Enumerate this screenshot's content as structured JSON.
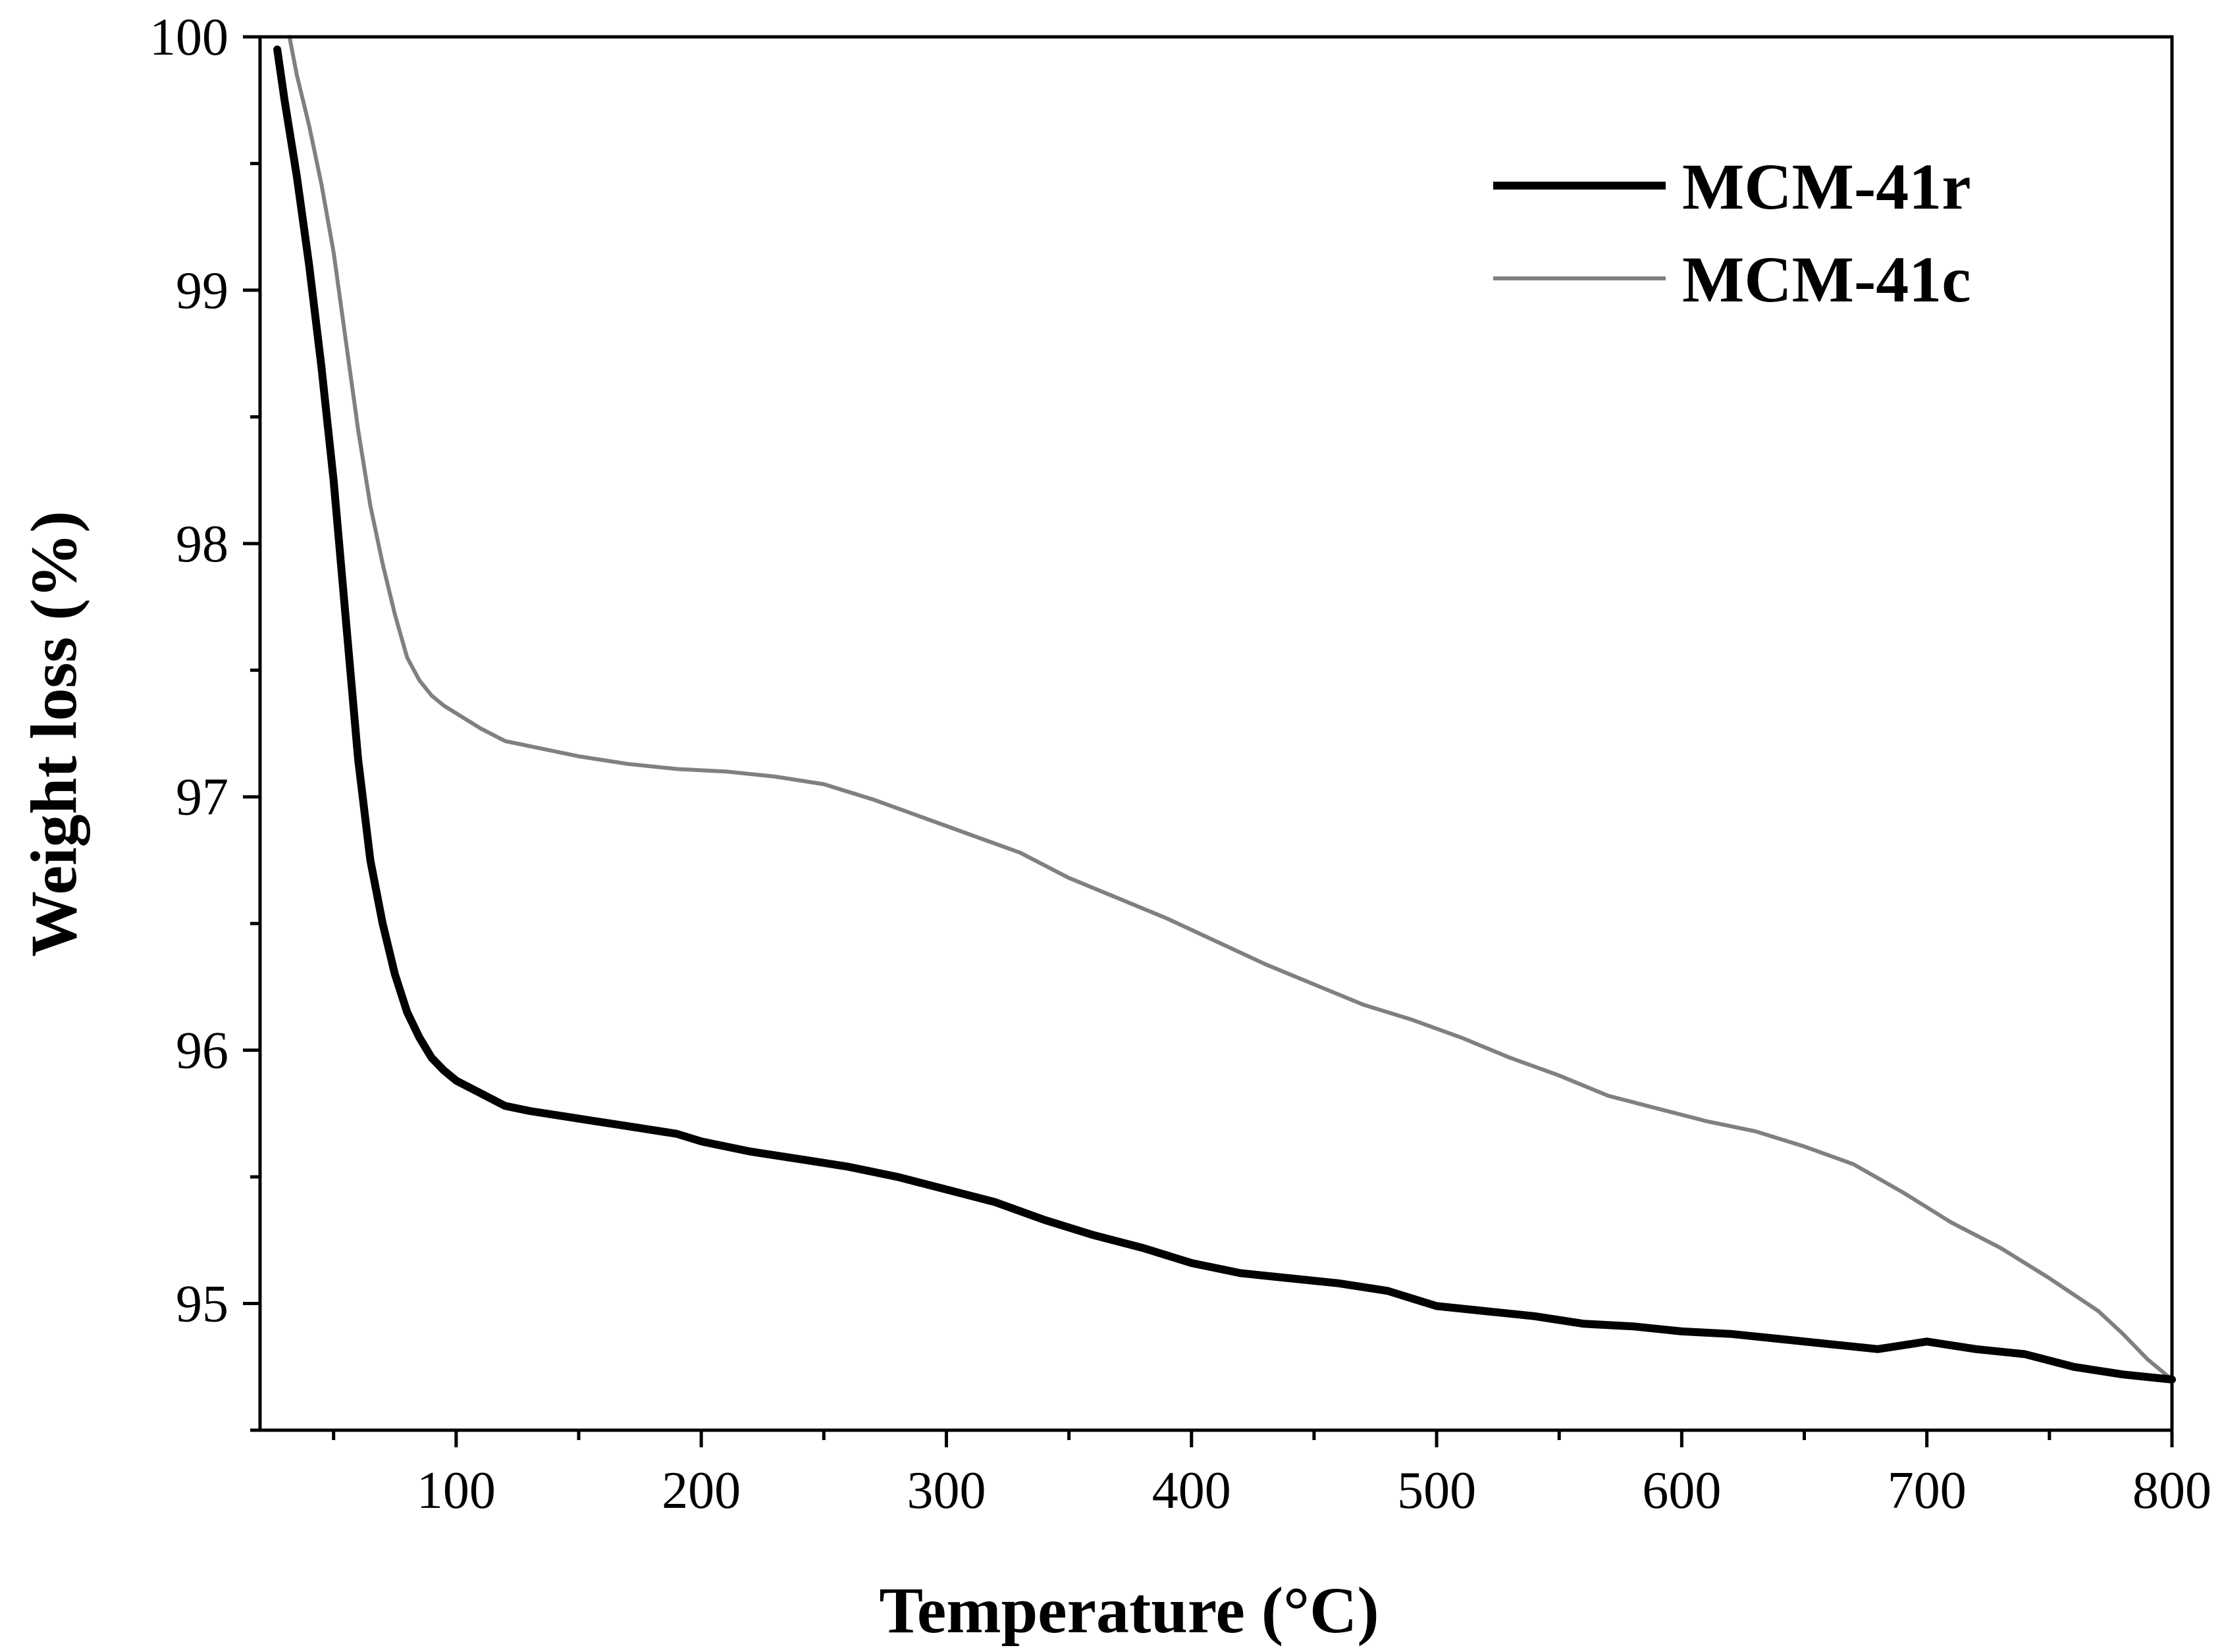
{
  "chart_data": {
    "type": "line",
    "title": "",
    "xlabel": "Temperature (°C)",
    "ylabel": "Weight loss (%)",
    "xlim": [
      20,
      800
    ],
    "ylim": [
      94.5,
      100
    ],
    "x_ticks": [
      100,
      200,
      300,
      400,
      500,
      600,
      700,
      800
    ],
    "x_tick_labels": [
      "100",
      "200",
      "300",
      "400",
      "500",
      "600",
      "700",
      "800"
    ],
    "x_minor_ticks": [
      50,
      150,
      250,
      350,
      450,
      550,
      650,
      750
    ],
    "y_ticks": [
      95,
      96,
      97,
      98,
      99,
      100
    ],
    "y_tick_labels": [
      "95",
      "96",
      "97",
      "98",
      "99",
      "100"
    ],
    "y_minor_ticks": [
      94.5,
      95.5,
      96.5,
      97.5,
      98.5,
      99.5
    ],
    "grid": false,
    "legend_position": "top-right",
    "series": [
      {
        "name": "MCM-41r",
        "color": "#000000",
        "style": "thick",
        "x": [
          27,
          30,
          35,
          40,
          45,
          50,
          55,
          60,
          65,
          70,
          75,
          80,
          85,
          90,
          95,
          100,
          110,
          120,
          130,
          150,
          170,
          190,
          200,
          220,
          240,
          260,
          280,
          300,
          320,
          340,
          360,
          380,
          400,
          420,
          440,
          460,
          480,
          500,
          520,
          540,
          560,
          580,
          600,
          620,
          640,
          660,
          680,
          700,
          720,
          740,
          760,
          780,
          800
        ],
        "values": [
          99.95,
          99.75,
          99.45,
          99.1,
          98.7,
          98.25,
          97.7,
          97.15,
          96.75,
          96.5,
          96.3,
          96.15,
          96.05,
          95.97,
          95.92,
          95.88,
          95.83,
          95.78,
          95.76,
          95.73,
          95.7,
          95.67,
          95.64,
          95.6,
          95.57,
          95.54,
          95.5,
          95.45,
          95.4,
          95.33,
          95.27,
          95.22,
          95.16,
          95.12,
          95.1,
          95.08,
          95.05,
          94.99,
          94.97,
          94.95,
          94.92,
          94.91,
          94.89,
          94.88,
          94.86,
          94.84,
          94.82,
          94.85,
          94.82,
          94.8,
          94.75,
          94.72,
          94.7
        ]
      },
      {
        "name": "MCM-41c",
        "color": "#808080",
        "style": "thin",
        "x": [
          32,
          35,
          40,
          45,
          50,
          55,
          60,
          65,
          70,
          75,
          80,
          85,
          90,
          95,
          100,
          110,
          120,
          130,
          150,
          170,
          190,
          210,
          230,
          250,
          270,
          290,
          310,
          330,
          350,
          370,
          390,
          410,
          430,
          450,
          470,
          490,
          510,
          530,
          550,
          570,
          590,
          610,
          630,
          650,
          670,
          690,
          710,
          730,
          750,
          770,
          780,
          790,
          800
        ],
        "values": [
          100,
          99.85,
          99.65,
          99.42,
          99.15,
          98.8,
          98.45,
          98.15,
          97.92,
          97.72,
          97.55,
          97.46,
          97.4,
          97.36,
          97.33,
          97.27,
          97.22,
          97.2,
          97.16,
          97.13,
          97.11,
          97.1,
          97.08,
          97.05,
          96.99,
          96.92,
          96.85,
          96.78,
          96.68,
          96.6,
          96.52,
          96.43,
          96.34,
          96.26,
          96.18,
          96.12,
          96.05,
          95.97,
          95.9,
          95.82,
          95.77,
          95.72,
          95.68,
          95.62,
          95.55,
          95.44,
          95.32,
          95.22,
          95.1,
          94.97,
          94.88,
          94.78,
          94.7
        ]
      }
    ]
  }
}
